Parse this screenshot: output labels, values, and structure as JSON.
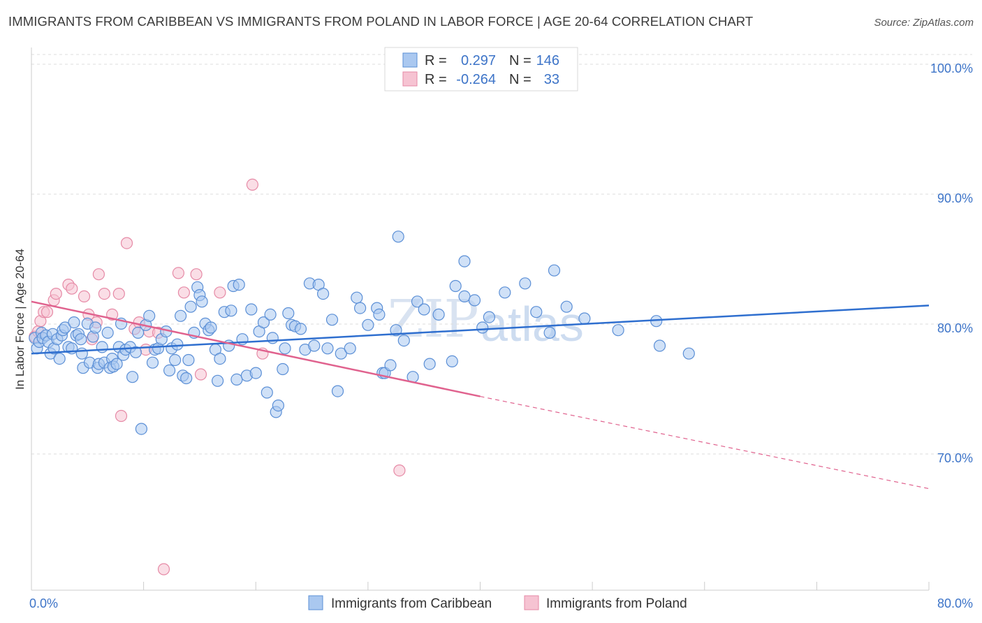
{
  "title": "IMMIGRANTS FROM CARIBBEAN VS IMMIGRANTS FROM POLAND IN LABOR FORCE | AGE 20-64 CORRELATION CHART",
  "source": "Source: ZipAtlas.com",
  "watermark": {
    "zip": "ZIP",
    "atlas": "atlas"
  },
  "legend": {
    "r_label": "R =",
    "n_label": "N =",
    "rows": [
      {
        "r": "0.297",
        "n": "146"
      },
      {
        "r": "-0.264",
        "n": "33"
      }
    ]
  },
  "bottom_legend": [
    "Immigrants from Caribbean",
    "Immigrants from Poland"
  ],
  "colors": {
    "blue_fill": "#aac8f0",
    "blue_stroke": "#5b8fd6",
    "blue_line": "#2f6fcf",
    "pink_fill": "#f6c3d2",
    "pink_stroke": "#e68aa6",
    "pink_line": "#e0628e",
    "tick_text": "#3d74c8",
    "grid": "#dcdcdc"
  },
  "chart_data": {
    "type": "scatter",
    "xlabel": "",
    "ylabel": "In Labor Force | Age 20-64",
    "xlim": [
      0,
      80
    ],
    "ylim": [
      60,
      102
    ],
    "x_tick_labels": [
      {
        "value": 0,
        "label": "0.0%"
      },
      {
        "value": 80,
        "label": "80.0%"
      }
    ],
    "y_tick_labels": [
      {
        "value": 100,
        "label": "100.0%"
      },
      {
        "value": 90,
        "label": "90.0%"
      },
      {
        "value": 80,
        "label": "80.0%"
      },
      {
        "value": 70,
        "label": "70.0%"
      }
    ],
    "grid": "horizontal dashed",
    "legend_position": "top-center",
    "series": [
      {
        "name": "Immigrants from Caribbean",
        "r": 0.297,
        "n": 146,
        "trend": {
          "x": [
            0,
            80
          ],
          "y": [
            78.0,
            81.7
          ],
          "style": "solid"
        },
        "points": [
          [
            0.3,
            79.2
          ],
          [
            0.5,
            78.4
          ],
          [
            0.7,
            78.9
          ],
          [
            0.9,
            79.6
          ],
          [
            1.0,
            79.2
          ],
          [
            1.3,
            79.4
          ],
          [
            1.5,
            78.9
          ],
          [
            1.7,
            78.0
          ],
          [
            1.9,
            79.5
          ],
          [
            2.0,
            78.4
          ],
          [
            2.3,
            79.1
          ],
          [
            2.5,
            77.6
          ],
          [
            2.7,
            79.4
          ],
          [
            2.8,
            79.8
          ],
          [
            3.0,
            80.0
          ],
          [
            3.3,
            78.5
          ],
          [
            3.6,
            78.4
          ],
          [
            3.8,
            80.4
          ],
          [
            4.0,
            79.4
          ],
          [
            4.2,
            79.5
          ],
          [
            4.4,
            79.1
          ],
          [
            4.5,
            78.0
          ],
          [
            4.6,
            76.9
          ],
          [
            5.0,
            80.3
          ],
          [
            5.2,
            77.3
          ],
          [
            5.5,
            79.3
          ],
          [
            5.7,
            80.0
          ],
          [
            5.9,
            76.9
          ],
          [
            6.0,
            77.2
          ],
          [
            6.3,
            78.5
          ],
          [
            6.5,
            77.3
          ],
          [
            6.8,
            79.6
          ],
          [
            7.0,
            76.9
          ],
          [
            7.2,
            77.6
          ],
          [
            7.3,
            77.0
          ],
          [
            7.6,
            77.2
          ],
          [
            7.8,
            78.5
          ],
          [
            8.0,
            80.3
          ],
          [
            8.2,
            77.9
          ],
          [
            8.4,
            78.3
          ],
          [
            8.8,
            78.5
          ],
          [
            9.0,
            76.2
          ],
          [
            9.3,
            78.1
          ],
          [
            9.5,
            79.6
          ],
          [
            9.8,
            72.2
          ],
          [
            10.2,
            80.2
          ],
          [
            10.5,
            80.9
          ],
          [
            10.8,
            77.3
          ],
          [
            11.0,
            78.3
          ],
          [
            11.3,
            78.4
          ],
          [
            11.6,
            79.1
          ],
          [
            12.0,
            79.7
          ],
          [
            12.3,
            76.7
          ],
          [
            12.5,
            78.4
          ],
          [
            12.8,
            77.5
          ],
          [
            13.0,
            78.7
          ],
          [
            13.3,
            80.9
          ],
          [
            13.5,
            76.3
          ],
          [
            13.8,
            76.1
          ],
          [
            14.0,
            77.5
          ],
          [
            14.2,
            81.6
          ],
          [
            14.5,
            79.6
          ],
          [
            14.8,
            83.1
          ],
          [
            15.0,
            82.5
          ],
          [
            15.2,
            82.0
          ],
          [
            15.5,
            80.3
          ],
          [
            15.8,
            79.8
          ],
          [
            16.0,
            80.0
          ],
          [
            16.4,
            78.3
          ],
          [
            16.6,
            75.9
          ],
          [
            16.8,
            77.6
          ],
          [
            17.2,
            81.2
          ],
          [
            17.6,
            78.6
          ],
          [
            17.8,
            81.3
          ],
          [
            18.0,
            83.2
          ],
          [
            18.3,
            76.0
          ],
          [
            18.5,
            83.3
          ],
          [
            18.8,
            79.1
          ],
          [
            19.2,
            76.3
          ],
          [
            19.6,
            81.4
          ],
          [
            20.0,
            76.5
          ],
          [
            20.3,
            79.7
          ],
          [
            20.7,
            80.4
          ],
          [
            21.0,
            75.0
          ],
          [
            21.3,
            81.0
          ],
          [
            21.5,
            79.2
          ],
          [
            21.8,
            73.5
          ],
          [
            22.0,
            74.0
          ],
          [
            22.4,
            76.8
          ],
          [
            22.6,
            78.4
          ],
          [
            22.9,
            81.1
          ],
          [
            23.2,
            80.2
          ],
          [
            23.5,
            80.1
          ],
          [
            24.0,
            79.9
          ],
          [
            24.4,
            78.3
          ],
          [
            24.8,
            83.4
          ],
          [
            25.2,
            78.6
          ],
          [
            25.6,
            83.3
          ],
          [
            26.0,
            82.6
          ],
          [
            26.4,
            78.4
          ],
          [
            26.8,
            80.6
          ],
          [
            27.3,
            75.1
          ],
          [
            27.6,
            78.0
          ],
          [
            28.4,
            78.4
          ],
          [
            29.0,
            82.3
          ],
          [
            29.3,
            81.5
          ],
          [
            30.0,
            80.2
          ],
          [
            30.8,
            81.5
          ],
          [
            31.0,
            81.0
          ],
          [
            31.3,
            76.5
          ],
          [
            31.5,
            76.5
          ],
          [
            32.0,
            77.1
          ],
          [
            32.5,
            79.8
          ],
          [
            32.7,
            87.0
          ],
          [
            33.2,
            79.0
          ],
          [
            34.0,
            76.2
          ],
          [
            34.4,
            82.0
          ],
          [
            35.0,
            81.4
          ],
          [
            35.5,
            77.2
          ],
          [
            36.3,
            81.0
          ],
          [
            37.5,
            77.4
          ],
          [
            37.8,
            83.2
          ],
          [
            38.6,
            85.1
          ],
          [
            38.6,
            82.4
          ],
          [
            39.5,
            82.1
          ],
          [
            40.2,
            80.0
          ],
          [
            40.8,
            80.8
          ],
          [
            42.2,
            82.7
          ],
          [
            44.0,
            83.4
          ],
          [
            45.0,
            81.2
          ],
          [
            46.2,
            79.6
          ],
          [
            46.6,
            84.4
          ],
          [
            47.7,
            81.6
          ],
          [
            49.3,
            80.7
          ],
          [
            52.3,
            79.8
          ],
          [
            55.7,
            80.5
          ],
          [
            56.0,
            78.6
          ],
          [
            58.6,
            78.0
          ]
        ]
      },
      {
        "name": "Immigrants from Poland",
        "r": -0.264,
        "n": 33,
        "trend": {
          "x": [
            0,
            40
          ],
          "y": [
            82.0,
            74.7
          ],
          "style": "solid",
          "extension": {
            "x": [
              40,
              80
            ],
            "y": [
              74.7,
              67.6
            ],
            "style": "dashed"
          }
        },
        "points": [
          [
            0.3,
            79.3
          ],
          [
            0.6,
            79.7
          ],
          [
            0.8,
            80.5
          ],
          [
            1.1,
            81.2
          ],
          [
            1.4,
            81.2
          ],
          [
            2.0,
            82.1
          ],
          [
            2.2,
            82.6
          ],
          [
            3.3,
            83.3
          ],
          [
            3.6,
            83.0
          ],
          [
            4.7,
            82.4
          ],
          [
            5.1,
            81.0
          ],
          [
            5.4,
            79.1
          ],
          [
            5.8,
            80.4
          ],
          [
            6.0,
            84.1
          ],
          [
            6.5,
            82.6
          ],
          [
            7.2,
            81.0
          ],
          [
            7.8,
            82.6
          ],
          [
            8.0,
            73.2
          ],
          [
            8.5,
            86.5
          ],
          [
            9.2,
            79.9
          ],
          [
            9.6,
            80.4
          ],
          [
            10.2,
            78.3
          ],
          [
            10.5,
            79.7
          ],
          [
            11.3,
            79.6
          ],
          [
            11.8,
            61.4
          ],
          [
            13.1,
            84.2
          ],
          [
            13.6,
            82.7
          ],
          [
            14.7,
            84.1
          ],
          [
            15.1,
            76.4
          ],
          [
            16.8,
            82.7
          ],
          [
            19.7,
            91.0
          ],
          [
            20.6,
            78.0
          ],
          [
            32.8,
            69.0
          ]
        ]
      }
    ]
  }
}
